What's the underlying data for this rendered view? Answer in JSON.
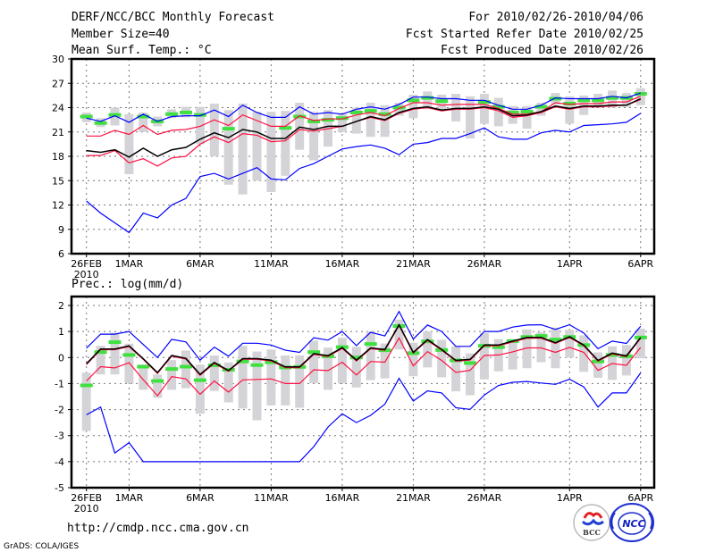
{
  "header": {
    "title": "DERF/NCC/BCC Monthly Forecast",
    "member_size": "Member Size=40",
    "variable": "Mean Surf. Temp.: °C",
    "period": "For 2010/02/26-2010/04/06",
    "started": "Fcst Started Refer Date 2010/02/25",
    "produced": "Fcst Produced Date 2010/02/26"
  },
  "footer": {
    "url": "http://cmdp.ncc.cma.gov.cn",
    "credit": "GrADS: COLA/IGES",
    "logo_left": "BCC",
    "logo_right": "NCC"
  },
  "colors": {
    "envelope": "#0000ff",
    "quartile": "#ff1040",
    "median": "#000000",
    "observed": "#40e040",
    "spread": "#d4d4d8"
  },
  "chart_data": [
    {
      "type": "line",
      "title": "Mean Surf. Temp.: °C",
      "ylim": [
        6,
        30
      ],
      "yticks": [
        "6",
        "9",
        "12",
        "15",
        "18",
        "21",
        "24",
        "27",
        "30"
      ],
      "ytick_values": [
        6,
        9,
        12,
        15,
        18,
        21,
        24,
        27,
        30
      ],
      "xtick_days": [
        0,
        3,
        8,
        13,
        18,
        23,
        28,
        34,
        39
      ],
      "xtick_labels": [
        "26FEB",
        "1MAR",
        "6MAR",
        "11MAR",
        "16MAR",
        "21MAR",
        "26MAR",
        "1APR",
        "6APR"
      ],
      "xtick_sublabel": "2010",
      "grid": true,
      "days": 40,
      "series": [
        {
          "name": "max",
          "color": "#0000ff",
          "values": [
            22.7,
            22.3,
            23.0,
            22.2,
            23.2,
            22.3,
            22.9,
            23.0,
            23.0,
            23.7,
            22.9,
            24.3,
            23.4,
            22.8,
            22.8,
            24.1,
            23.2,
            23.4,
            23.2,
            23.8,
            24.1,
            23.8,
            24.4,
            25.3,
            25.3,
            25.1,
            25.1,
            24.9,
            24.9,
            24.3,
            23.8,
            23.8,
            24.3,
            25.2,
            25.1,
            25.1,
            25.1,
            25.4,
            25.2,
            25.8
          ]
        },
        {
          "name": "upper",
          "color": "#ff1040",
          "values": [
            20.5,
            20.5,
            21.2,
            20.7,
            21.8,
            20.7,
            21.2,
            21.3,
            21.7,
            22.5,
            21.8,
            23.1,
            22.4,
            21.7,
            21.7,
            23.0,
            22.4,
            22.6,
            22.6,
            23.1,
            23.4,
            23.0,
            23.9,
            24.6,
            24.6,
            24.3,
            24.4,
            24.4,
            24.4,
            23.9,
            23.2,
            23.2,
            23.5,
            24.6,
            24.4,
            24.5,
            24.5,
            24.7,
            24.7,
            25.4
          ]
        },
        {
          "name": "lower",
          "color": "#ff1040",
          "values": [
            18.1,
            18.1,
            18.7,
            17.2,
            17.7,
            16.8,
            17.8,
            18.0,
            19.5,
            20.4,
            19.7,
            20.8,
            20.6,
            19.8,
            19.9,
            21.3,
            21.1,
            21.4,
            21.7,
            22.3,
            22.8,
            22.4,
            23.3,
            23.8,
            24.0,
            23.6,
            23.8,
            23.8,
            24.0,
            23.6,
            22.8,
            23.0,
            23.4,
            24.1,
            23.8,
            24.1,
            24.1,
            24.2,
            24.3,
            25.0
          ]
        },
        {
          "name": "median",
          "color": "#000000",
          "values": [
            18.7,
            18.5,
            18.8,
            17.9,
            19.0,
            18.0,
            18.8,
            19.1,
            20.1,
            20.9,
            20.3,
            21.3,
            21.0,
            20.2,
            20.2,
            21.6,
            21.3,
            21.7,
            21.7,
            22.3,
            22.9,
            22.5,
            23.4,
            23.9,
            24.1,
            23.7,
            23.9,
            23.9,
            24.1,
            23.8,
            23.0,
            23.1,
            23.5,
            24.2,
            23.9,
            24.2,
            24.2,
            24.3,
            24.3,
            25.1
          ]
        },
        {
          "name": "min",
          "color": "#0000ff",
          "values": [
            12.5,
            11.0,
            9.8,
            8.6,
            11.0,
            10.4,
            12.0,
            12.8,
            15.5,
            15.9,
            15.2,
            15.9,
            16.6,
            15.2,
            15.1,
            16.5,
            17.1,
            18.0,
            18.9,
            19.2,
            19.4,
            19.0,
            18.2,
            19.5,
            19.7,
            20.2,
            20.2,
            20.8,
            21.5,
            20.4,
            20.1,
            20.1,
            20.9,
            21.2,
            21.0,
            21.8,
            21.9,
            22.0,
            22.2,
            23.3
          ]
        }
      ],
      "bars_low": [
        22.2,
        21.6,
        21.8,
        15.8,
        21.0,
        21.7,
        22.7,
        22.8,
        19.5,
        18.0,
        14.5,
        13.3,
        15.0,
        13.6,
        15.6,
        18.8,
        17.5,
        19.2,
        21.0,
        20.8,
        20.4,
        20.4,
        23.0,
        22.7,
        23.8,
        23.6,
        22.3,
        20.2,
        22.0,
        21.7,
        22.0,
        21.4,
        23.0,
        24.4,
        22.0,
        23.1,
        24.0,
        24.0,
        24.1,
        24.3
      ],
      "bars_high": [
        23.4,
        22.7,
        24.0,
        23.2,
        23.4,
        22.9,
        23.8,
        24.1,
        24.1,
        24.5,
        23.7,
        24.5,
        23.5,
        23.5,
        23.6,
        24.6,
        23.5,
        23.7,
        23.2,
        24.0,
        24.6,
        24.3,
        24.6,
        25.6,
        26.0,
        25.6,
        25.7,
        25.4,
        25.7,
        25.2,
        24.2,
        24.2,
        24.6,
        25.8,
        25.4,
        25.5,
        25.7,
        26.1,
        25.8,
        26.4
      ],
      "observed": [
        22.9,
        22.1,
        23.1,
        null,
        22.9,
        22.3,
        23.2,
        23.4,
        23.1,
        null,
        21.4,
        null,
        null,
        null,
        21.5,
        22.9,
        22.3,
        22.5,
        22.7,
        23.4,
        23.6,
        23.2,
        24.0,
        24.9,
        25.2,
        24.8,
        null,
        null,
        24.7,
        24.1,
        23.4,
        23.5,
        24.1,
        25.1,
        24.5,
        24.9,
        24.9,
        25.2,
        25.2,
        25.7
      ]
    },
    {
      "type": "line",
      "title": "Prec.: log(mm/d)",
      "ylim": [
        -5,
        2
      ],
      "yticks": [
        "-5",
        "-4",
        "-3",
        "-2",
        "-1",
        "0",
        "1",
        "2"
      ],
      "ytick_values": [
        -5,
        -4,
        -3,
        -2,
        -1,
        0,
        1,
        2
      ],
      "xtick_days": [
        0,
        3,
        8,
        13,
        18,
        23,
        28,
        34,
        39
      ],
      "xtick_labels": [
        "26FEB",
        "1MAR",
        "6MAR",
        "11MAR",
        "16MAR",
        "21MAR",
        "26MAR",
        "1APR",
        "6APR"
      ],
      "xtick_sublabel": "2010",
      "grid": true,
      "days": 40,
      "series": [
        {
          "name": "max",
          "color": "#0000ff",
          "values": [
            0.36,
            0.9,
            0.9,
            1.0,
            0.5,
            0.0,
            0.7,
            0.6,
            -0.1,
            0.4,
            0.05,
            0.55,
            0.55,
            0.48,
            0.28,
            0.2,
            0.76,
            0.67,
            1.0,
            0.46,
            0.97,
            0.83,
            1.77,
            0.71,
            1.25,
            1.0,
            0.43,
            0.43,
            1.0,
            1.0,
            1.17,
            1.25,
            1.26,
            1.08,
            1.26,
            0.94,
            0.34,
            0.63,
            0.54,
            1.2
          ]
        },
        {
          "name": "lower",
          "color": "#ff1040",
          "values": [
            -0.9,
            -0.35,
            -0.4,
            -0.2,
            -0.85,
            -1.47,
            -0.73,
            -0.82,
            -1.41,
            -0.9,
            -1.33,
            -0.86,
            -0.84,
            -0.82,
            -1.0,
            -1.0,
            -0.47,
            -0.5,
            -0.18,
            -0.67,
            -0.15,
            -0.18,
            0.75,
            -0.32,
            0.23,
            -0.11,
            -0.57,
            -0.49,
            0.08,
            0.1,
            0.22,
            0.37,
            0.37,
            0.2,
            0.39,
            0.2,
            -0.49,
            -0.23,
            -0.3,
            0.39
          ]
        },
        {
          "name": "upper",
          "color": "#ff1040",
          "values": [
            -0.27,
            0.3,
            0.3,
            0.42,
            -0.07,
            -0.61,
            0.05,
            -0.06,
            -0.68,
            -0.22,
            -0.53,
            -0.07,
            -0.07,
            -0.13,
            -0.39,
            -0.39,
            0.12,
            0.04,
            0.35,
            -0.13,
            0.34,
            0.28,
            1.23,
            0.17,
            0.66,
            0.28,
            -0.14,
            -0.1,
            0.45,
            0.45,
            0.6,
            0.74,
            0.74,
            0.54,
            0.77,
            0.45,
            -0.14,
            0.14,
            0.03,
            0.74
          ]
        },
        {
          "name": "median",
          "color": "#000000",
          "values": [
            -0.24,
            0.33,
            0.33,
            0.45,
            -0.05,
            -0.58,
            0.08,
            -0.03,
            -0.65,
            -0.19,
            -0.5,
            -0.04,
            -0.04,
            -0.1,
            -0.36,
            -0.36,
            0.15,
            0.07,
            0.38,
            -0.1,
            0.37,
            0.31,
            1.26,
            0.2,
            0.69,
            0.31,
            -0.11,
            -0.07,
            0.48,
            0.48,
            0.63,
            0.77,
            0.77,
            0.57,
            0.8,
            0.48,
            -0.11,
            0.17,
            0.06,
            0.77
          ]
        },
        {
          "name": "min",
          "color": "#0000ff",
          "values": [
            -2.2,
            -1.9,
            -3.67,
            -3.27,
            -4.0,
            -4.0,
            -4.0,
            -4.0,
            -4.0,
            -4.0,
            -4.0,
            -4.0,
            -4.0,
            -4.0,
            -4.0,
            -4.0,
            -3.42,
            -2.67,
            -2.16,
            -2.5,
            -2.22,
            -1.79,
            -0.8,
            -1.67,
            -1.28,
            -1.36,
            -1.93,
            -1.99,
            -1.44,
            -1.07,
            -0.95,
            -0.92,
            -0.98,
            -1.03,
            -0.83,
            -1.13,
            -1.9,
            -1.36,
            -1.36,
            -0.59
          ]
        }
      ],
      "bars_low": [
        -2.82,
        -0.65,
        -0.65,
        -0.98,
        -1.24,
        -1.55,
        -1.24,
        -1.18,
        -2.16,
        -1.28,
        -1.72,
        -1.96,
        -2.41,
        -1.84,
        -1.84,
        -1.93,
        -0.98,
        -1.24,
        -0.98,
        -1.15,
        -0.87,
        -0.8,
        0.31,
        -0.72,
        -0.38,
        -0.76,
        -1.3,
        -1.45,
        -0.84,
        -0.53,
        -0.46,
        -0.41,
        -0.18,
        -0.41,
        0.0,
        -0.55,
        -0.78,
        -0.86,
        -0.69,
        -0.03
      ],
      "bars_high": [
        -0.58,
        0.45,
        0.95,
        0.53,
        -0.27,
        -0.65,
        -0.1,
        0.27,
        -0.27,
        0.08,
        -0.19,
        0.45,
        0.23,
        0.31,
        0.08,
        0.08,
        0.65,
        0.38,
        0.76,
        0.41,
        1.0,
        0.54,
        1.46,
        0.57,
        1.0,
        0.68,
        0.43,
        0.16,
        0.94,
        0.71,
        0.71,
        1.08,
        0.97,
        1.15,
        1.06,
        0.85,
        0.2,
        0.43,
        0.48,
        1.11
      ],
      "observed": [
        -1.07,
        0.21,
        0.59,
        0.1,
        -0.35,
        -0.9,
        -0.44,
        -0.35,
        -0.87,
        -0.3,
        -0.47,
        -0.15,
        -0.29,
        -0.18,
        -0.38,
        -0.36,
        0.21,
        0.05,
        0.4,
        0.0,
        0.52,
        0.28,
        1.21,
        0.17,
        0.62,
        0.29,
        -0.11,
        -0.21,
        0.45,
        0.4,
        0.63,
        0.79,
        0.83,
        0.69,
        0.79,
        0.48,
        -0.15,
        0.1,
        0.05,
        0.77
      ]
    }
  ]
}
